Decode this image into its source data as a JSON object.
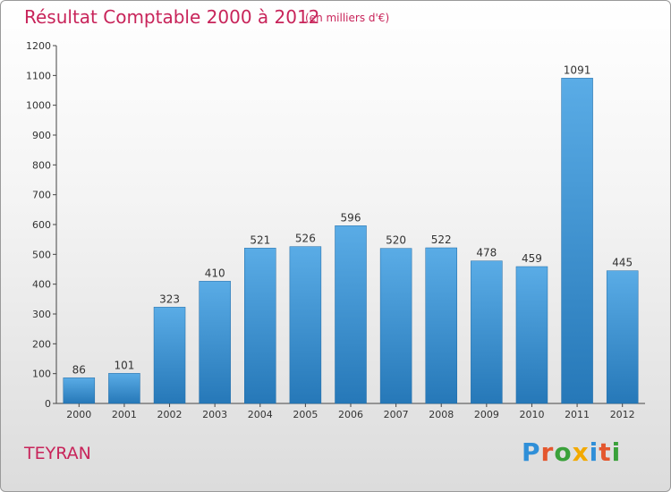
{
  "header": {
    "title": "Résultat Comptable 2000 à 2012",
    "subtitle": "(en milliers d'€)"
  },
  "footer": {
    "town": "TEYRAN",
    "logo": "Proxiti",
    "logo_colors": [
      "#2f8fd8",
      "#e4572e",
      "#3aa13a",
      "#f2a900",
      "#2f8fd8",
      "#e4572e",
      "#3aa13a"
    ]
  },
  "colors": {
    "title": "#c8245a",
    "bar_top": "#5aace6",
    "bar_bottom": "#2678b8"
  },
  "chart_data": {
    "type": "bar",
    "title": "Résultat Comptable 2000 à 2012",
    "subtitle": "(en milliers d'€)",
    "xlabel": "",
    "ylabel": "",
    "categories": [
      "2000",
      "2001",
      "2002",
      "2003",
      "2004",
      "2005",
      "2006",
      "2007",
      "2008",
      "2009",
      "2010",
      "2011",
      "2012"
    ],
    "values": [
      86,
      101,
      323,
      410,
      521,
      526,
      596,
      520,
      522,
      478,
      459,
      1091,
      445
    ],
    "ylim": [
      0,
      1200
    ],
    "yticks": [
      0,
      100,
      200,
      300,
      400,
      500,
      600,
      700,
      800,
      900,
      1000,
      1100,
      1200
    ],
    "grid": false,
    "legend": "none"
  }
}
